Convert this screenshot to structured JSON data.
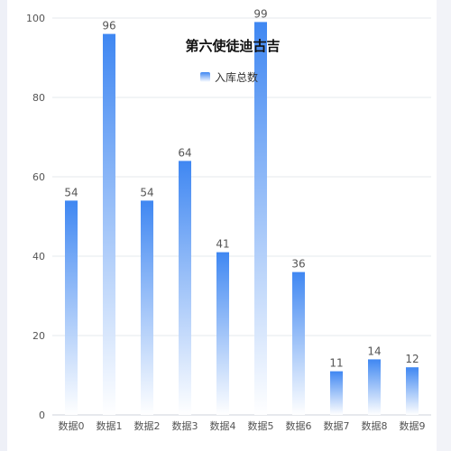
{
  "chart_data": {
    "type": "bar",
    "title": "第六使徒迪古吉",
    "categories": [
      "数据0",
      "数据1",
      "数据2",
      "数据3",
      "数据4",
      "数据5",
      "数据6",
      "数据7",
      "数据8",
      "数据9"
    ],
    "series": [
      {
        "name": "入库总数",
        "values": [
          54,
          96,
          54,
          64,
          41,
          99,
          36,
          11,
          14,
          12
        ],
        "color_top": "#3f87f2",
        "color_bottom": "#ffffff"
      }
    ],
    "ylim": [
      0,
      100
    ],
    "yticks": [
      0,
      20,
      40,
      60,
      80,
      100
    ],
    "xlabel": "",
    "ylabel": "",
    "grid": true,
    "legend": "top-center",
    "colors": {
      "grid": "#e6e8ee",
      "axis": "#cfd3db",
      "text": "#555555"
    }
  }
}
